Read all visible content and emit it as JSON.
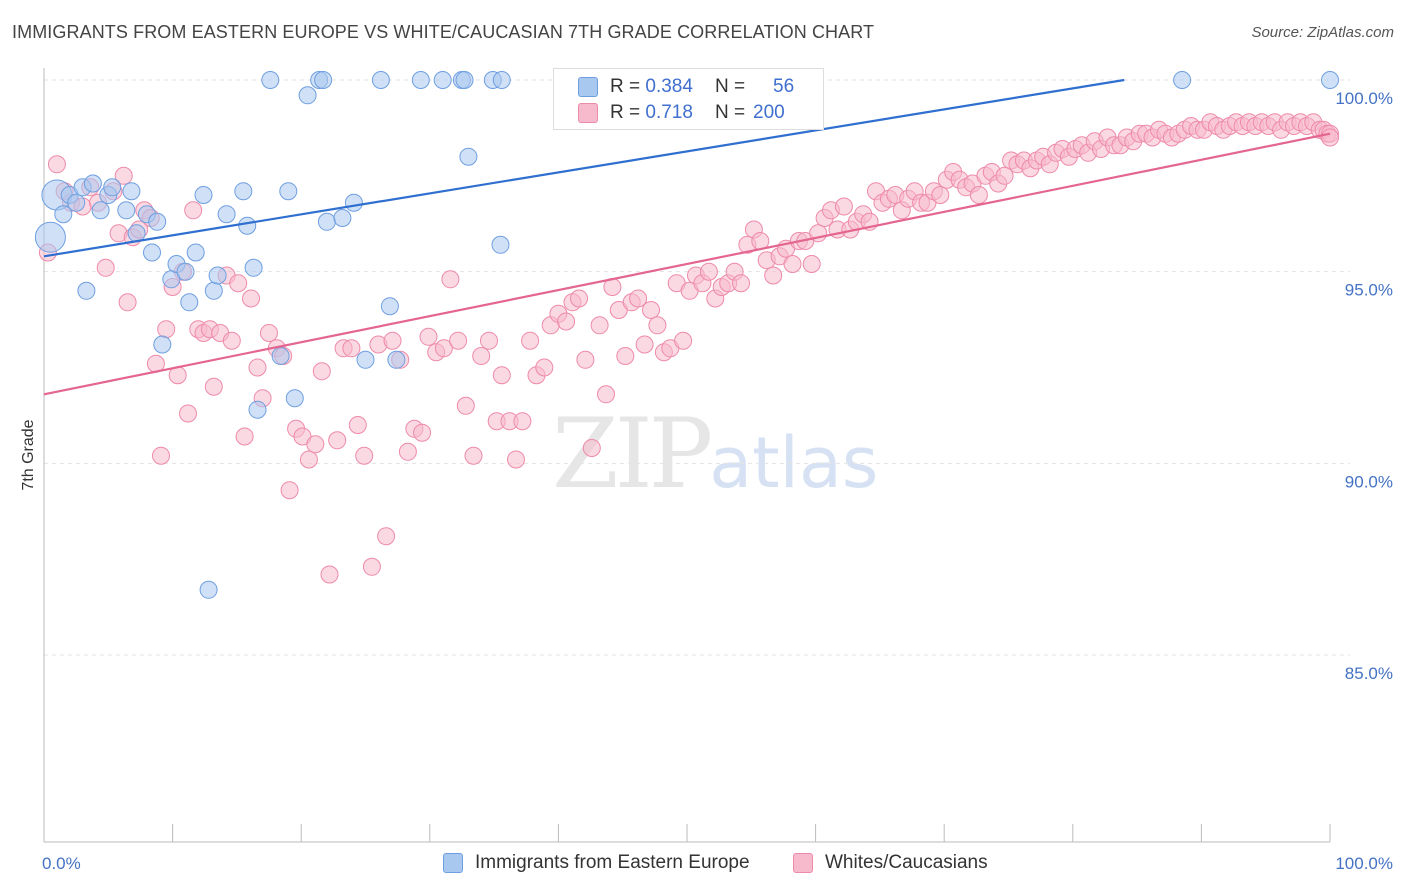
{
  "title": "IMMIGRANTS FROM EASTERN EUROPE VS WHITE/CAUCASIAN 7TH GRADE CORRELATION CHART",
  "source": "Source: ZipAtlas.com",
  "watermark": {
    "zip": "ZIP",
    "atlas": "atlas"
  },
  "legend_top": [
    {
      "r_label": "R =",
      "r_value": "0.384",
      "n_label": "N =",
      "n_value": "56",
      "color": "#a9c8f0"
    },
    {
      "r_label": "R =",
      "r_value": "0.718",
      "n_label": "N =",
      "n_value": "200",
      "color": "#f7b9cc"
    }
  ],
  "chart_data": {
    "type": "scatter",
    "title": "IMMIGRANTS FROM EASTERN EUROPE VS WHITE/CAUCASIAN 7TH GRADE CORRELATION CHART",
    "xlabel": "",
    "ylabel": "7th Grade",
    "xlim": [
      0,
      100
    ],
    "ylim": [
      80.5,
      100.6
    ],
    "x_tick_labels": [
      "0.0%",
      "100.0%"
    ],
    "y_ticks": [
      85,
      90,
      95,
      100
    ],
    "y_tick_labels": [
      "85.0%",
      "90.0%",
      "95.0%",
      "100.0%"
    ],
    "grid": true,
    "legend_position": "bottom",
    "series": [
      {
        "name": "Immigrants from Eastern Europe",
        "color": "#a9c8f0",
        "stroke": "#6f9fe0",
        "trend_color": "#2f6fd0",
        "trend": {
          "x0": 0,
          "y0": 95.4,
          "x1": 84,
          "y1": 100.0
        },
        "points": [
          [
            0.5,
            95.9
          ],
          [
            1,
            97.0
          ],
          [
            1.5,
            96.5
          ],
          [
            2,
            97.0
          ],
          [
            2.5,
            96.8
          ],
          [
            3,
            97.2
          ],
          [
            3.3,
            94.5
          ],
          [
            3.8,
            97.3
          ],
          [
            4.4,
            96.6
          ],
          [
            5,
            97.0
          ],
          [
            5.3,
            97.2
          ],
          [
            6.4,
            96.6
          ],
          [
            6.8,
            97.1
          ],
          [
            7.2,
            96.0
          ],
          [
            8,
            96.5
          ],
          [
            8.4,
            95.5
          ],
          [
            8.8,
            96.3
          ],
          [
            9.2,
            93.1
          ],
          [
            9.9,
            94.8
          ],
          [
            10.3,
            95.2
          ],
          [
            11,
            95.0
          ],
          [
            11.3,
            94.2
          ],
          [
            11.8,
            95.5
          ],
          [
            12.4,
            97.0
          ],
          [
            12.8,
            86.7
          ],
          [
            13.2,
            94.5
          ],
          [
            13.5,
            94.9
          ],
          [
            14.2,
            96.5
          ],
          [
            15.5,
            97.1
          ],
          [
            15.8,
            96.2
          ],
          [
            16.3,
            95.1
          ],
          [
            16.6,
            91.4
          ],
          [
            17.6,
            100.0
          ],
          [
            18.4,
            92.8
          ],
          [
            19,
            97.1
          ],
          [
            19.5,
            91.7
          ],
          [
            20.5,
            99.6
          ],
          [
            21.4,
            100.0
          ],
          [
            21.7,
            100.0
          ],
          [
            22,
            96.3
          ],
          [
            23.2,
            96.4
          ],
          [
            24.1,
            96.8
          ],
          [
            25,
            92.7
          ],
          [
            26.2,
            100.0
          ],
          [
            26.9,
            94.1
          ],
          [
            27.4,
            92.7
          ],
          [
            29.3,
            100.0
          ],
          [
            31,
            100.0
          ],
          [
            32.5,
            100.0
          ],
          [
            32.7,
            100.0
          ],
          [
            33,
            98.0
          ],
          [
            34.9,
            100.0
          ],
          [
            35.5,
            95.7
          ],
          [
            35.6,
            100.0
          ],
          [
            88.5,
            100.0
          ],
          [
            100,
            100.0
          ]
        ]
      },
      {
        "name": "Whites/Caucasians",
        "color": "#f7b9cc",
        "stroke": "#ee8aaa",
        "trend_color": "#e4658f",
        "trend": {
          "x0": 0,
          "y0": 91.8,
          "x1": 100,
          "y1": 98.6
        },
        "points": [
          [
            0.3,
            95.5
          ],
          [
            1,
            97.8
          ],
          [
            1.6,
            97.1
          ],
          [
            2.1,
            96.8
          ],
          [
            3,
            96.7
          ],
          [
            3.6,
            97.2
          ],
          [
            4.2,
            96.8
          ],
          [
            4.8,
            95.1
          ],
          [
            5.4,
            97.1
          ],
          [
            5.8,
            96.0
          ],
          [
            6.2,
            97.5
          ],
          [
            6.5,
            94.2
          ],
          [
            6.9,
            95.9
          ],
          [
            7.4,
            96.1
          ],
          [
            7.8,
            96.6
          ],
          [
            8.3,
            96.4
          ],
          [
            8.7,
            92.6
          ],
          [
            9.1,
            90.2
          ],
          [
            9.5,
            93.5
          ],
          [
            10,
            94.6
          ],
          [
            10.4,
            92.3
          ],
          [
            10.8,
            95.0
          ],
          [
            11.2,
            91.3
          ],
          [
            11.6,
            96.6
          ],
          [
            12,
            93.5
          ],
          [
            12.4,
            93.4
          ],
          [
            12.9,
            93.5
          ],
          [
            13.2,
            92.0
          ],
          [
            13.7,
            93.4
          ],
          [
            14.2,
            94.9
          ],
          [
            14.6,
            93.2
          ],
          [
            15.1,
            94.7
          ],
          [
            15.6,
            90.7
          ],
          [
            16.1,
            94.3
          ],
          [
            16.6,
            92.5
          ],
          [
            17,
            91.7
          ],
          [
            17.5,
            93.4
          ],
          [
            18.1,
            93.0
          ],
          [
            18.6,
            92.8
          ],
          [
            19.1,
            89.3
          ],
          [
            19.6,
            90.9
          ],
          [
            20.1,
            90.7
          ],
          [
            20.6,
            90.1
          ],
          [
            21.1,
            90.5
          ],
          [
            21.6,
            92.4
          ],
          [
            22.2,
            87.1
          ],
          [
            22.8,
            90.6
          ],
          [
            23.3,
            93.0
          ],
          [
            23.9,
            93.0
          ],
          [
            24.4,
            91.0
          ],
          [
            24.9,
            90.2
          ],
          [
            25.5,
            87.3
          ],
          [
            26,
            93.1
          ],
          [
            26.6,
            88.1
          ],
          [
            27.1,
            93.2
          ],
          [
            27.7,
            92.7
          ],
          [
            28.3,
            90.3
          ],
          [
            28.8,
            90.9
          ],
          [
            29.4,
            90.8
          ],
          [
            29.9,
            93.3
          ],
          [
            30.5,
            92.9
          ],
          [
            31.1,
            93.0
          ],
          [
            31.6,
            94.8
          ],
          [
            32.2,
            93.2
          ],
          [
            32.8,
            91.5
          ],
          [
            33.4,
            90.2
          ],
          [
            34,
            92.8
          ],
          [
            34.6,
            93.2
          ],
          [
            35.2,
            91.1
          ],
          [
            35.6,
            92.3
          ],
          [
            36.2,
            91.1
          ],
          [
            36.7,
            90.1
          ],
          [
            37.2,
            91.1
          ],
          [
            37.8,
            93.2
          ],
          [
            38.3,
            92.3
          ],
          [
            38.9,
            92.5
          ],
          [
            39.4,
            93.6
          ],
          [
            40,
            93.9
          ],
          [
            40.6,
            93.7
          ],
          [
            41.1,
            94.2
          ],
          [
            41.6,
            94.3
          ],
          [
            42.1,
            92.7
          ],
          [
            42.6,
            90.4
          ],
          [
            43.2,
            93.6
          ],
          [
            43.7,
            91.8
          ],
          [
            44.2,
            94.6
          ],
          [
            44.7,
            94.0
          ],
          [
            45.2,
            92.8
          ],
          [
            45.7,
            94.2
          ],
          [
            46.2,
            94.3
          ],
          [
            46.7,
            93.1
          ],
          [
            47.2,
            94.0
          ],
          [
            47.7,
            93.6
          ],
          [
            48.2,
            92.9
          ],
          [
            48.7,
            93.0
          ],
          [
            49.2,
            94.7
          ],
          [
            49.7,
            93.2
          ],
          [
            50.2,
            94.5
          ],
          [
            50.7,
            94.9
          ],
          [
            51.2,
            94.7
          ],
          [
            51.7,
            95.0
          ],
          [
            52.2,
            94.3
          ],
          [
            52.7,
            94.6
          ],
          [
            53.2,
            94.7
          ],
          [
            53.7,
            95.0
          ],
          [
            54.2,
            94.7
          ],
          [
            54.7,
            95.7
          ],
          [
            55.2,
            96.1
          ],
          [
            55.7,
            95.8
          ],
          [
            56.2,
            95.3
          ],
          [
            56.7,
            94.9
          ],
          [
            57.2,
            95.4
          ],
          [
            57.7,
            95.6
          ],
          [
            58.2,
            95.2
          ],
          [
            58.7,
            95.8
          ],
          [
            59.2,
            95.8
          ],
          [
            59.7,
            95.2
          ],
          [
            60.2,
            96.0
          ],
          [
            60.7,
            96.4
          ],
          [
            61.2,
            96.6
          ],
          [
            61.7,
            96.1
          ],
          [
            62.2,
            96.7
          ],
          [
            62.7,
            96.1
          ],
          [
            63.2,
            96.3
          ],
          [
            63.7,
            96.5
          ],
          [
            64.2,
            96.3
          ],
          [
            64.7,
            97.1
          ],
          [
            65.2,
            96.8
          ],
          [
            65.7,
            96.9
          ],
          [
            66.2,
            97.0
          ],
          [
            66.7,
            96.6
          ],
          [
            67.2,
            96.9
          ],
          [
            67.7,
            97.1
          ],
          [
            68.2,
            96.8
          ],
          [
            68.7,
            96.8
          ],
          [
            69.2,
            97.1
          ],
          [
            69.7,
            97.0
          ],
          [
            70.2,
            97.4
          ],
          [
            70.7,
            97.6
          ],
          [
            71.2,
            97.4
          ],
          [
            71.7,
            97.2
          ],
          [
            72.2,
            97.3
          ],
          [
            72.7,
            97.0
          ],
          [
            73.2,
            97.5
          ],
          [
            73.7,
            97.6
          ],
          [
            74.2,
            97.3
          ],
          [
            74.7,
            97.5
          ],
          [
            75.2,
            97.9
          ],
          [
            75.7,
            97.8
          ],
          [
            76.2,
            97.9
          ],
          [
            76.7,
            97.7
          ],
          [
            77.2,
            97.9
          ],
          [
            77.7,
            98.0
          ],
          [
            78.2,
            97.8
          ],
          [
            78.7,
            98.1
          ],
          [
            79.2,
            98.2
          ],
          [
            79.7,
            98.0
          ],
          [
            80.2,
            98.2
          ],
          [
            80.7,
            98.3
          ],
          [
            81.2,
            98.1
          ],
          [
            81.7,
            98.4
          ],
          [
            82.2,
            98.2
          ],
          [
            82.7,
            98.5
          ],
          [
            83.2,
            98.3
          ],
          [
            83.7,
            98.3
          ],
          [
            84.2,
            98.5
          ],
          [
            84.7,
            98.4
          ],
          [
            85.2,
            98.6
          ],
          [
            85.7,
            98.6
          ],
          [
            86.2,
            98.5
          ],
          [
            86.7,
            98.7
          ],
          [
            87.2,
            98.6
          ],
          [
            87.7,
            98.5
          ],
          [
            88.2,
            98.6
          ],
          [
            88.7,
            98.7
          ],
          [
            89.2,
            98.8
          ],
          [
            89.7,
            98.7
          ],
          [
            90.2,
            98.7
          ],
          [
            90.7,
            98.9
          ],
          [
            91.2,
            98.8
          ],
          [
            91.7,
            98.7
          ],
          [
            92.2,
            98.8
          ],
          [
            92.7,
            98.9
          ],
          [
            93.2,
            98.8
          ],
          [
            93.7,
            98.9
          ],
          [
            94.2,
            98.8
          ],
          [
            94.7,
            98.9
          ],
          [
            95.2,
            98.8
          ],
          [
            95.7,
            98.9
          ],
          [
            96.2,
            98.7
          ],
          [
            96.7,
            98.9
          ],
          [
            97.2,
            98.8
          ],
          [
            97.7,
            98.9
          ],
          [
            98.2,
            98.8
          ],
          [
            98.7,
            98.9
          ],
          [
            99.2,
            98.7
          ],
          [
            99.5,
            98.7
          ],
          [
            99.8,
            98.6
          ],
          [
            100,
            98.6
          ],
          [
            100,
            98.5
          ]
        ]
      }
    ]
  }
}
